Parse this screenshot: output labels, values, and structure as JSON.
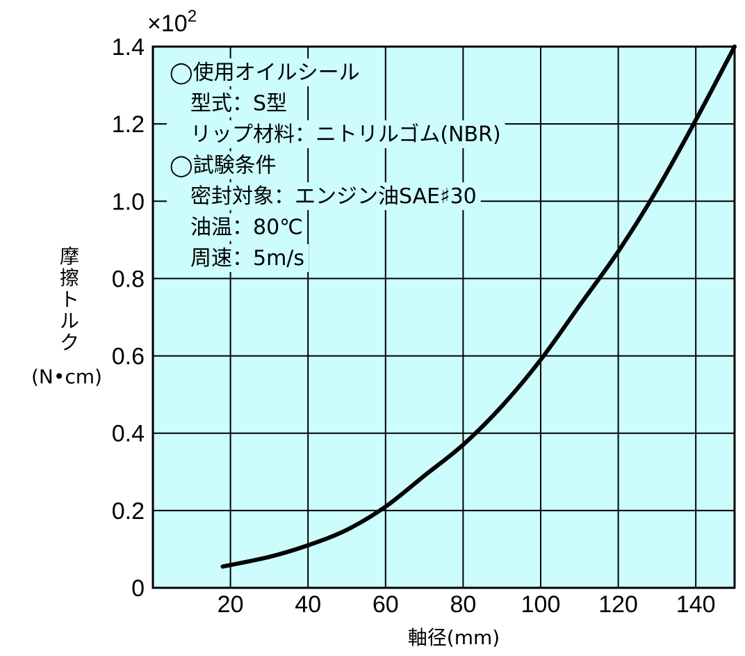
{
  "chart_data": {
    "type": "line",
    "title": "",
    "xlabel": "軸径(mm)",
    "ylabel": [
      "摩",
      "擦",
      "ト",
      "ル",
      "ク",
      "(N•cm)"
    ],
    "y_multiplier": "×10",
    "y_multiplier_exp": "2",
    "xlim": [
      0,
      150
    ],
    "ylim": [
      0,
      1.4
    ],
    "x_ticks": [
      20,
      40,
      60,
      80,
      100,
      120,
      140
    ],
    "x_tick_labels": [
      "20",
      "40",
      "60",
      "80",
      "100",
      "120",
      "140"
    ],
    "y_ticks": [
      0,
      0.2,
      0.4,
      0.6,
      0.8,
      1.0,
      1.2,
      1.4
    ],
    "y_tick_labels": [
      "0",
      "0.2",
      "0.4",
      "0.6",
      "0.8",
      "1.0",
      "1.2",
      "1.4"
    ],
    "grid": true,
    "series": [
      {
        "x": [
          18,
          30,
          40,
          50,
          60,
          70,
          80,
          90,
          100,
          110,
          120,
          130,
          140,
          150
        ],
        "values": [
          0.055,
          0.08,
          0.11,
          0.15,
          0.21,
          0.29,
          0.37,
          0.47,
          0.59,
          0.73,
          0.87,
          1.03,
          1.21,
          1.4
        ]
      }
    ],
    "annotations": [
      "◯使用オイルシール",
      "　型式：S型",
      "　リップ材料：ニトリルゴム(NBR)",
      "◯試験条件",
      "　密封対象：エンジン油SAE♯30",
      "　油温：80℃",
      "　周速：5m/s"
    ],
    "colors": {
      "plot_background": "#ccfcfc",
      "grid": "#000000",
      "curve": "#000000"
    }
  }
}
